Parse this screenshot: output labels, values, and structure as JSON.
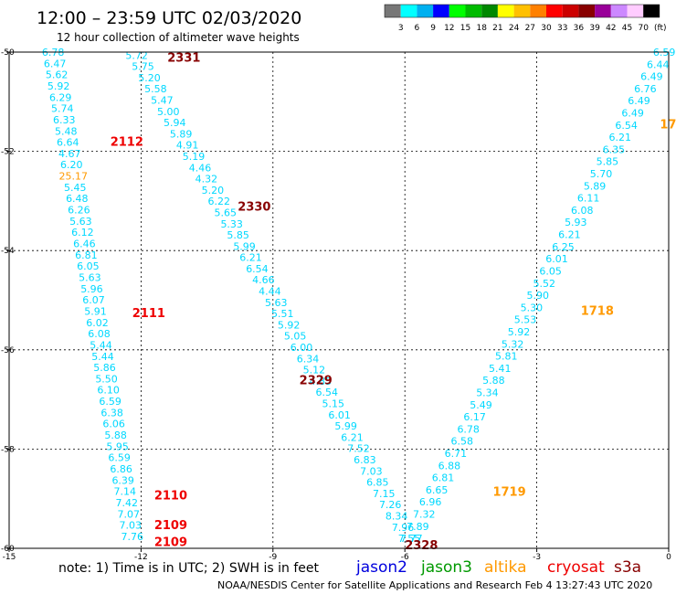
{
  "header": {
    "title": "12:00 – 23:59 UTC 02/03/2020",
    "subtitle": "12 hour collection of altimeter wave heights"
  },
  "colorbar": {
    "labels": [
      "3",
      "6",
      "9",
      "12",
      "15",
      "18",
      "21",
      "24",
      "27",
      "30",
      "33",
      "36",
      "39",
      "42",
      "45",
      "70"
    ],
    "unit": "(ft)",
    "colors": [
      "#777777",
      "#00ffff",
      "#00b0f0",
      "#0000ff",
      "#00ff00",
      "#00bb00",
      "#008800",
      "#ffff00",
      "#ffc000",
      "#ff8000",
      "#ff0000",
      "#cc0000",
      "#880000",
      "#990099",
      "#cc88ff",
      "#ffccff",
      "#000000"
    ]
  },
  "footer": {
    "note": "note: 1) Time is in UTC; 2) SWH is in feet",
    "credit": "NOAA/NESDIS Center for Satellite Applications and Research   Feb  4 13:27:43 UTC 2020",
    "satellites": [
      {
        "name": "jason2",
        "color": "#0000dd"
      },
      {
        "name": "jason3",
        "color": "#009900"
      },
      {
        "name": "altika",
        "color": "#ff9900"
      },
      {
        "name": "cryosat",
        "color": "#ee0000"
      },
      {
        "name": "s3a",
        "color": "#880000"
      }
    ]
  },
  "chart_data": {
    "type": "scatter",
    "title": "12:00 – 23:59 UTC 02/03/2020",
    "subtitle": "12 hour collection of altimeter wave heights",
    "xlim": [
      -15,
      0
    ],
    "ylim": [
      -60,
      -50
    ],
    "xticks": [
      "-15",
      "-12",
      "-9",
      "-6",
      "-3",
      "0"
    ],
    "yticks": [
      "-50",
      "-52",
      "-54",
      "-56",
      "-58",
      "-60"
    ],
    "grid": true,
    "colors": {
      "low": "#00d8ff",
      "mid": "#ff9900",
      "cryosat": "#ee0000",
      "s3a": "#880000"
    },
    "tracks": [
      {
        "x_start": -14.0,
        "x_end": -12.2,
        "y_start": -50.0,
        "y_end": -59.76,
        "values": [
          "6.78",
          "6.47",
          "5.62",
          "5.92",
          "6.29",
          "5.74",
          "6.33",
          "5.48",
          "6.64",
          "4.67",
          "6.20",
          "25.17",
          "5.45",
          "6.48",
          "6.26",
          "5.63",
          "6.12",
          "6.46",
          "6.81",
          "6.05",
          "5.63",
          "5.96",
          "6.07",
          "5.91",
          "6.02",
          "6.08",
          "5.44",
          "5.44",
          "5.86",
          "5.50",
          "6.10",
          "6.59",
          "6.38",
          "6.06",
          "5.88",
          "5.95",
          "6.59",
          "6.86",
          "6.39",
          "7.14",
          "7.42",
          "7.07",
          "7.03",
          "7.76"
        ],
        "colors": [
          "low",
          "low",
          "low",
          "low",
          "low",
          "low",
          "low",
          "low",
          "low",
          "low",
          "low",
          "mid",
          "low",
          "low",
          "low",
          "low",
          "low",
          "low",
          "low",
          "low",
          "low",
          "low",
          "low",
          "low",
          "low",
          "low",
          "low",
          "low",
          "low",
          "low",
          "low",
          "low",
          "low",
          "low",
          "low",
          "low",
          "low",
          "low",
          "low",
          "low",
          "low",
          "low",
          "low",
          "low"
        ]
      },
      {
        "x_start": -12.1,
        "x_end": -5.9,
        "y_start": -50.06,
        "y_end": -59.8,
        "values": [
          "5.72",
          "5.75",
          "5.20",
          "5.58",
          "5.47",
          "5.00",
          "5.94",
          "5.89",
          "4.91",
          "5.19",
          "4.46",
          "4.32",
          "5.20",
          "6.22",
          "5.65",
          "5.33",
          "5.85",
          "5.99",
          "6.21",
          "6.54",
          "4.66",
          "4.44",
          "5.63",
          "5.51",
          "5.92",
          "5.05",
          "6.00",
          "6.34",
          "5.12",
          "4.85",
          "6.54",
          "5.15",
          "6.01",
          "5.99",
          "6.21",
          "7.52",
          "6.83",
          "7.03",
          "6.85",
          "7.15",
          "7.26",
          "8.34",
          "7.96",
          "7.55"
        ],
        "colors": []
      },
      {
        "x_start": -5.85,
        "x_end": -0.1,
        "y_start": -59.8,
        "y_end": -50.0,
        "values": [
          "7.77",
          "7.89",
          "7.32",
          "6.96",
          "6.65",
          "6.81",
          "6.88",
          "6.71",
          "6.58",
          "6.78",
          "6.17",
          "5.49",
          "5.34",
          "5.88",
          "5.41",
          "5.81",
          "5.32",
          "5.92",
          "5.53",
          "5.30",
          "5.90",
          "5.52",
          "6.05",
          "6.01",
          "6.25",
          "6.21",
          "5.93",
          "6.08",
          "6.11",
          "5.89",
          "5.70",
          "5.85",
          "6.35",
          "6.21",
          "6.54",
          "6.49",
          "6.49",
          "6.76",
          "6.49",
          "6.44",
          "6.59"
        ],
        "colors": []
      }
    ],
    "pass_labels": [
      {
        "text": "2331",
        "x": -11.4,
        "y": -50.1,
        "color": "s3a"
      },
      {
        "text": "2112",
        "x": -12.7,
        "y": -51.8,
        "color": "cryosat"
      },
      {
        "text": "2330",
        "x": -9.8,
        "y": -53.1,
        "color": "s3a"
      },
      {
        "text": "2111",
        "x": -12.2,
        "y": -55.25,
        "color": "cryosat"
      },
      {
        "text": "2329",
        "x": -8.4,
        "y": -56.6,
        "color": "s3a"
      },
      {
        "text": "2110",
        "x": -11.7,
        "y": -58.92,
        "color": "cryosat"
      },
      {
        "text": "2109",
        "x": -11.7,
        "y": -59.52,
        "color": "cryosat"
      },
      {
        "text": "2109",
        "x": -11.7,
        "y": -59.86,
        "color": "cryosat"
      },
      {
        "text": "2328",
        "x": -6.0,
        "y": -59.93,
        "color": "s3a"
      },
      {
        "text": "17",
        "x": -0.2,
        "y": -51.45,
        "color": "mid"
      },
      {
        "text": "1718",
        "x": -2.0,
        "y": -55.2,
        "color": "mid"
      },
      {
        "text": "1719",
        "x": -4.0,
        "y": -58.85,
        "color": "mid"
      }
    ]
  }
}
